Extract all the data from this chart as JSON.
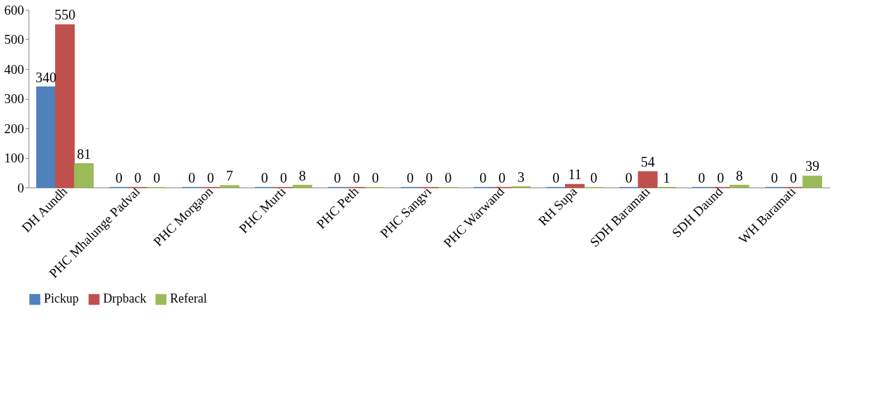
{
  "chart_data": {
    "type": "bar",
    "categories": [
      "DH Aundh",
      "PHC Mhalunge Padval",
      "PHC Morgaon",
      "PHC Murti",
      "PHC Peth",
      "PHC Sangvi",
      "PHC Warwand",
      "RH Supa",
      "SDH Baramati",
      "SDH Daund",
      "WH Baramati"
    ],
    "series": [
      {
        "name": "Pickup",
        "color": "#4f81bd",
        "values": [
          340,
          0,
          0,
          0,
          0,
          0,
          0,
          0,
          0,
          0,
          0
        ]
      },
      {
        "name": "Drpback",
        "color": "#c0504d",
        "values": [
          550,
          0,
          0,
          0,
          0,
          0,
          0,
          11,
          54,
          0,
          0
        ]
      },
      {
        "name": "Referal",
        "color": "#9bbb59",
        "values": [
          81,
          0,
          7,
          8,
          0,
          0,
          3,
          0,
          1,
          8,
          39
        ]
      }
    ],
    "ylim": [
      0,
      600
    ],
    "yticks": [
      0,
      100,
      200,
      300,
      400,
      500,
      600
    ],
    "grid": false,
    "legend": "bottom",
    "data_labels": true
  }
}
